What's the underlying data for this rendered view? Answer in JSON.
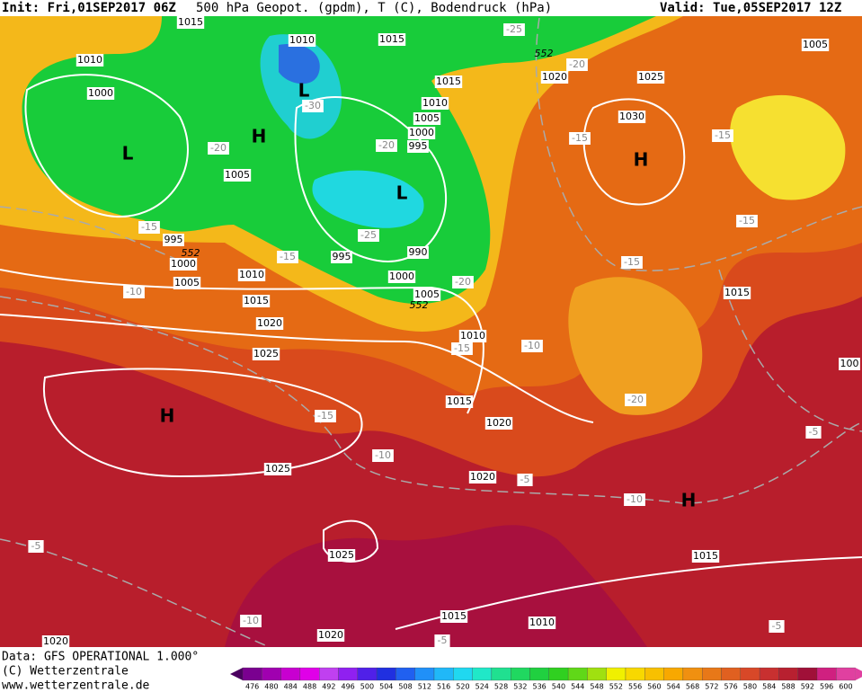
{
  "header": {
    "init": "Init: Fri,01SEP2017 06Z",
    "title": "500 hPa Geopot. (gpdm), T (C), Bodendruck (hPa)",
    "valid": "Valid: Tue,05SEP2017 12Z"
  },
  "footer": {
    "source": "Data: GFS OPERATIONAL 1.000°",
    "copyright": "(C) Wetterzentrale",
    "url": "www.wetterzentrale.de"
  },
  "legend": {
    "levels": [
      476,
      480,
      484,
      488,
      492,
      496,
      500,
      504,
      508,
      512,
      516,
      520,
      524,
      528,
      532,
      536,
      540,
      544,
      548,
      552,
      556,
      560,
      564,
      568,
      572,
      576,
      580,
      584,
      588,
      592,
      596,
      600
    ]
  },
  "map": {
    "isobar_labels": [
      "1015",
      "1010",
      "1015",
      "1010",
      "1000",
      "1015",
      "1010",
      "1005",
      "1000",
      "995",
      "1005",
      "995",
      "1000",
      "1005",
      "1010",
      "1015",
      "1020",
      "1025",
      "995",
      "990",
      "1000",
      "1005",
      "1010",
      "1015",
      "1020",
      "1020",
      "1025",
      "1025",
      "1020",
      "1015",
      "1010",
      "1015",
      "1015",
      "1020",
      "1025",
      "1030",
      "1005",
      "1020",
      "100"
    ],
    "temperature_labels": [
      "-25",
      "-20",
      "-30",
      "-20",
      "-20",
      "-15",
      "-15",
      "-25",
      "-15",
      "-15",
      "-15",
      "-15",
      "-10",
      "-20",
      "-15",
      "-10",
      "-20",
      "-15",
      "-10",
      "-5",
      "-5",
      "-10",
      "-5",
      "-10",
      "-5",
      "-5"
    ],
    "pressure_centers": [
      "L",
      "L",
      "H",
      "L",
      "H",
      "H",
      "H"
    ],
    "geopotential_labels": [
      "552",
      "552",
      "552"
    ]
  }
}
